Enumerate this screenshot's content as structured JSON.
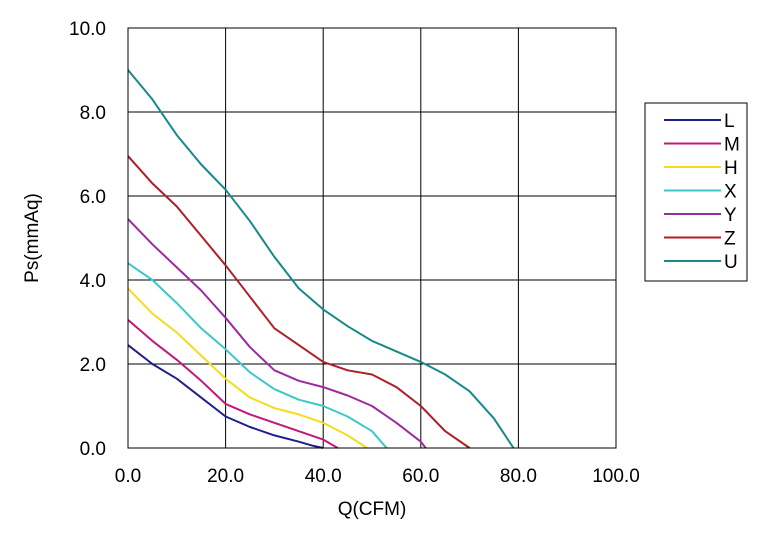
{
  "chart_data": {
    "type": "line",
    "xlabel": "Q(CFM)",
    "ylabel": "Ps(mmAq)",
    "xlim": [
      0,
      100
    ],
    "ylim": [
      0,
      10
    ],
    "x_ticks": [
      "0.0",
      "20.0",
      "40.0",
      "60.0",
      "80.0",
      "100.0"
    ],
    "y_ticks": [
      "0.0",
      "2.0",
      "4.0",
      "6.0",
      "8.0",
      "10.0"
    ],
    "grid": true,
    "legend_position": "right",
    "series": [
      {
        "name": "L",
        "color": "#1f1f8c",
        "x": [
          0,
          5,
          10,
          15,
          20,
          25,
          30,
          35,
          38,
          40
        ],
        "y": [
          2.45,
          2.0,
          1.65,
          1.2,
          0.75,
          0.5,
          0.3,
          0.15,
          0.05,
          0
        ]
      },
      {
        "name": "M",
        "color": "#c2187a",
        "x": [
          0,
          5,
          10,
          15,
          20,
          25,
          30,
          35,
          40,
          43
        ],
        "y": [
          3.05,
          2.55,
          2.1,
          1.6,
          1.05,
          0.8,
          0.6,
          0.4,
          0.2,
          0
        ]
      },
      {
        "name": "H",
        "color": "#f5dc1e",
        "x": [
          0,
          5,
          10,
          15,
          20,
          25,
          30,
          35,
          40,
          45,
          49
        ],
        "y": [
          3.8,
          3.2,
          2.75,
          2.2,
          1.65,
          1.2,
          0.95,
          0.8,
          0.6,
          0.3,
          0
        ]
      },
      {
        "name": "X",
        "color": "#3cc8c8",
        "x": [
          0,
          5,
          10,
          15,
          20,
          25,
          30,
          35,
          40,
          45,
          50,
          53
        ],
        "y": [
          4.4,
          4.0,
          3.45,
          2.85,
          2.35,
          1.8,
          1.4,
          1.15,
          1.0,
          0.75,
          0.4,
          0
        ]
      },
      {
        "name": "Y",
        "color": "#9c2aa0",
        "x": [
          0,
          5,
          10,
          15,
          20,
          25,
          30,
          35,
          40,
          45,
          50,
          55,
          60,
          61
        ],
        "y": [
          5.45,
          4.85,
          4.3,
          3.75,
          3.1,
          2.4,
          1.85,
          1.6,
          1.45,
          1.25,
          1.0,
          0.6,
          0.15,
          0
        ]
      },
      {
        "name": "Z",
        "color": "#b01e28",
        "x": [
          0,
          5,
          10,
          15,
          20,
          25,
          30,
          35,
          40,
          45,
          50,
          55,
          60,
          65,
          70
        ],
        "y": [
          6.95,
          6.3,
          5.75,
          5.05,
          4.35,
          3.6,
          2.85,
          2.45,
          2.05,
          1.85,
          1.75,
          1.45,
          1.0,
          0.4,
          0
        ]
      },
      {
        "name": "U",
        "color": "#168a8a",
        "x": [
          0,
          5,
          10,
          15,
          20,
          25,
          30,
          35,
          40,
          45,
          50,
          55,
          60,
          65,
          70,
          75,
          79
        ],
        "y": [
          9.0,
          8.3,
          7.45,
          6.75,
          6.15,
          5.4,
          4.55,
          3.8,
          3.3,
          2.9,
          2.55,
          2.3,
          2.05,
          1.75,
          1.35,
          0.7,
          0
        ]
      }
    ]
  }
}
